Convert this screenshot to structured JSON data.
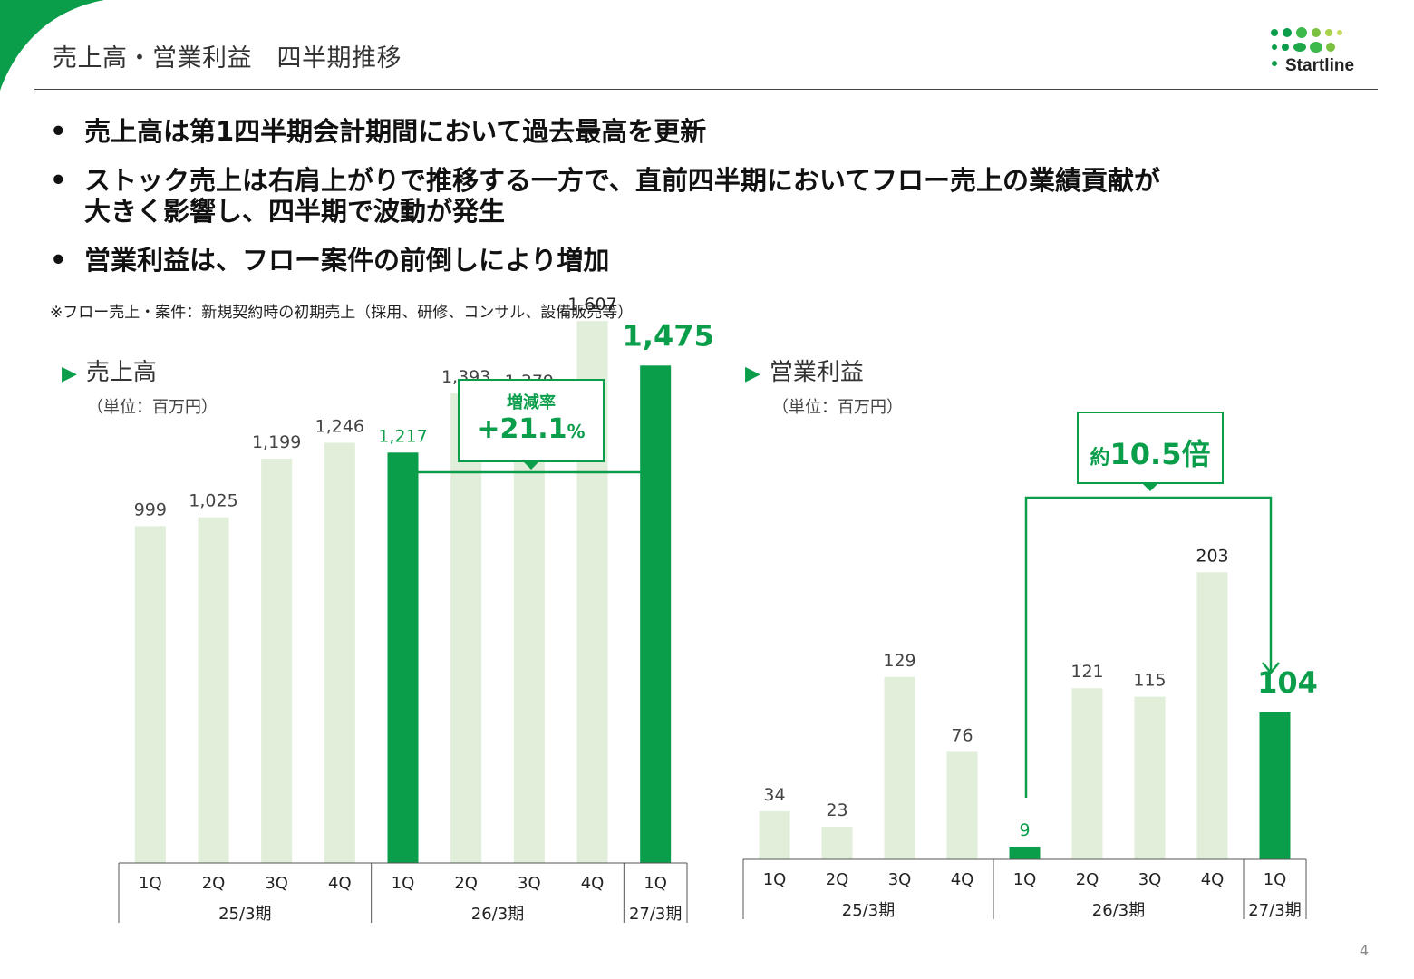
{
  "header": {
    "title": "売上高・営業利益　四半期推移",
    "logo_text": "Startline"
  },
  "bullets": [
    {
      "marker": "•",
      "text": "売上高は第1四半期会計期間において過去最高を更新"
    },
    {
      "marker": "•",
      "text": "ストック売上は右肩上がりで推移する一方で、直前四半期においてフロー売上の業績貢献が\n大きく影響し、四半期で波動が発生"
    },
    {
      "marker": "•",
      "text": "営業利益は、フロー案件の前倒しにより増加"
    }
  ],
  "note": "※フロー売上・案件：新規契約時の初期売上（採用、研修、コンサル、設備販売等）",
  "page_number": "4",
  "colors": {
    "brand": "#0a9e4b",
    "bar_light": "#e1eed9",
    "label_light": "#444444"
  },
  "charts": {
    "sales": {
      "title": "売上高",
      "unit": "（単位：百万円）",
      "callout_label": "増減率",
      "callout_value": "+21.1",
      "callout_value_suffix": "%"
    },
    "profit": {
      "title": "営業利益",
      "unit": "（単位：百万円）",
      "callout_prefix": "約",
      "callout_value": "10.5倍"
    }
  },
  "chart_data": [
    {
      "type": "bar",
      "title": "売上高",
      "ylabel": "（単位：百万円）",
      "categories": [
        "1Q",
        "2Q",
        "3Q",
        "4Q",
        "1Q",
        "2Q",
        "3Q",
        "4Q",
        "1Q"
      ],
      "groups": [
        {
          "label": "25/3期",
          "count": 4
        },
        {
          "label": "26/3期",
          "count": 4
        },
        {
          "label": "27/3期",
          "count": 1
        }
      ],
      "values": [
        999,
        1025,
        1199,
        1246,
        1217,
        1393,
        1379,
        1607,
        1475
      ],
      "value_labels": [
        "999",
        "1,025",
        "1,199",
        "1,246",
        "1,217",
        "1,393",
        "1,379",
        "1,607",
        "1,475"
      ],
      "highlight": [
        false,
        false,
        false,
        false,
        true,
        false,
        false,
        false,
        true
      ],
      "ylim": [
        0,
        1750
      ],
      "grid": false
    },
    {
      "type": "bar",
      "title": "営業利益",
      "ylabel": "（単位：百万円）",
      "categories": [
        "1Q",
        "2Q",
        "3Q",
        "4Q",
        "1Q",
        "2Q",
        "3Q",
        "4Q",
        "1Q"
      ],
      "groups": [
        {
          "label": "25/3期",
          "count": 4
        },
        {
          "label": "26/3期",
          "count": 4
        },
        {
          "label": "27/3期",
          "count": 1
        }
      ],
      "values": [
        34,
        23,
        129,
        76,
        9,
        121,
        115,
        203,
        104
      ],
      "value_labels": [
        "34",
        "23",
        "129",
        "76",
        "9",
        "121",
        "115",
        "203",
        "104"
      ],
      "highlight": [
        false,
        false,
        false,
        false,
        true,
        false,
        false,
        false,
        true
      ],
      "ylim": [
        0,
        220
      ],
      "grid": false
    }
  ]
}
